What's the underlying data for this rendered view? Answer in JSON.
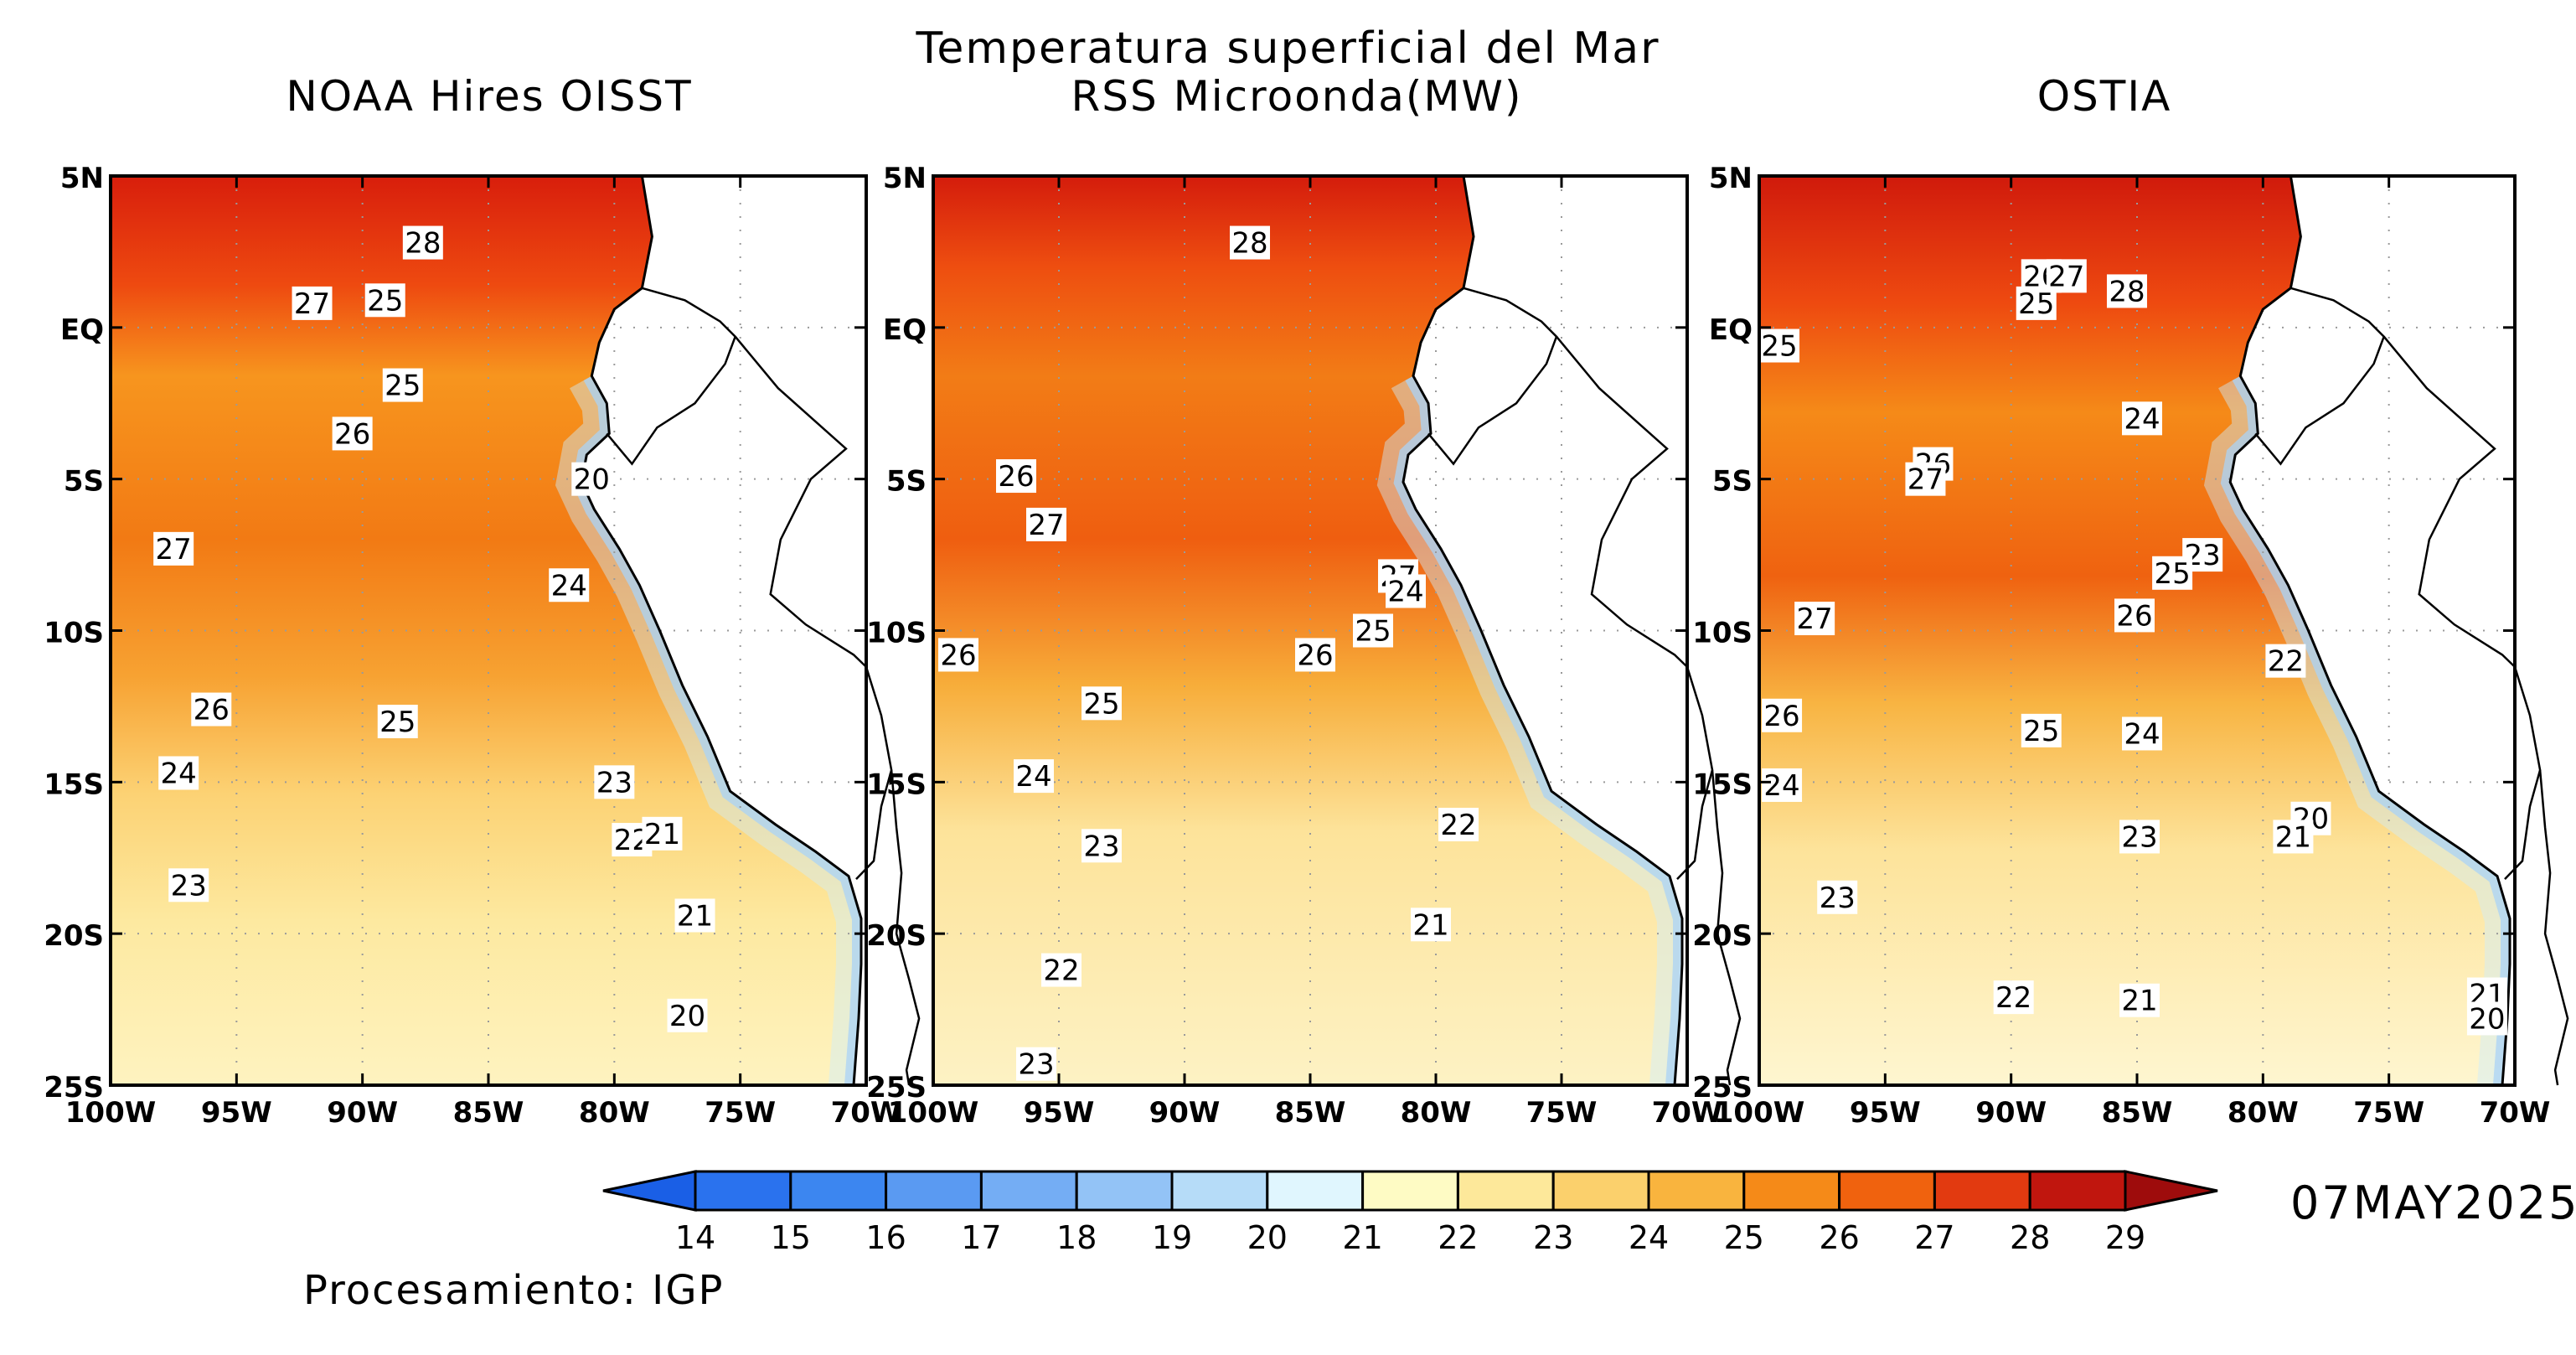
{
  "figure": {
    "title_line1": "Temperatura superficial del Mar",
    "date": "07MAY2025",
    "credit": "Procesamiento: IGP"
  },
  "panels": [
    {
      "title": "NOAA Hires OISST",
      "labels": [
        {
          "text": "28",
          "lon": -87.6,
          "lat": 2.8
        },
        {
          "text": "27",
          "lon": -92.0,
          "lat": 0.8
        },
        {
          "text": "25",
          "lon": -89.1,
          "lat": 0.9
        },
        {
          "text": "25",
          "lon": -88.4,
          "lat": -1.9
        },
        {
          "text": "26",
          "lon": -90.4,
          "lat": -3.5
        },
        {
          "text": "20",
          "lon": -80.9,
          "lat": -5.0
        },
        {
          "text": "27",
          "lon": -97.5,
          "lat": -7.3
        },
        {
          "text": "24",
          "lon": -81.8,
          "lat": -8.5
        },
        {
          "text": "26",
          "lon": -96.0,
          "lat": -12.6
        },
        {
          "text": "25",
          "lon": -88.6,
          "lat": -13.0
        },
        {
          "text": "24",
          "lon": -97.3,
          "lat": -14.7
        },
        {
          "text": "23",
          "lon": -80.0,
          "lat": -15.0
        },
        {
          "text": "22",
          "lon": -79.3,
          "lat": -16.9
        },
        {
          "text": "21",
          "lon": -78.1,
          "lat": -16.7
        },
        {
          "text": "23",
          "lon": -96.9,
          "lat": -18.4
        },
        {
          "text": "21",
          "lon": -76.8,
          "lat": -19.4
        },
        {
          "text": "20",
          "lon": -77.1,
          "lat": -22.7
        }
      ]
    },
    {
      "title": "RSS Microonda(MW)",
      "labels": [
        {
          "text": "28",
          "lon": -87.4,
          "lat": 2.8
        },
        {
          "text": "26",
          "lon": -96.7,
          "lat": -4.9
        },
        {
          "text": "27",
          "lon": -95.5,
          "lat": -6.5
        },
        {
          "text": "27",
          "lon": -81.5,
          "lat": -8.2
        },
        {
          "text": "24",
          "lon": -81.2,
          "lat": -8.7
        },
        {
          "text": "25",
          "lon": -82.5,
          "lat": -10.0
        },
        {
          "text": "26",
          "lon": -99.0,
          "lat": -10.8
        },
        {
          "text": "26",
          "lon": -84.8,
          "lat": -10.8
        },
        {
          "text": "25",
          "lon": -93.3,
          "lat": -12.4
        },
        {
          "text": "24",
          "lon": -96.0,
          "lat": -14.8
        },
        {
          "text": "23",
          "lon": -93.3,
          "lat": -17.1
        },
        {
          "text": "22",
          "lon": -79.1,
          "lat": -16.4
        },
        {
          "text": "21",
          "lon": -80.2,
          "lat": -19.7
        },
        {
          "text": "22",
          "lon": -94.9,
          "lat": -21.2
        },
        {
          "text": "23",
          "lon": -95.9,
          "lat": -24.3
        }
      ]
    },
    {
      "title": "OSTIA",
      "labels": [
        {
          "text": "26",
          "lon": -88.8,
          "lat": 1.7
        },
        {
          "text": "27",
          "lon": -87.8,
          "lat": 1.7
        },
        {
          "text": "28",
          "lon": -85.4,
          "lat": 1.2
        },
        {
          "text": "25",
          "lon": -89.0,
          "lat": 0.8
        },
        {
          "text": "25",
          "lon": -99.2,
          "lat": -0.6
        },
        {
          "text": "24",
          "lon": -84.8,
          "lat": -3.0
        },
        {
          "text": "26",
          "lon": -93.1,
          "lat": -4.5
        },
        {
          "text": "27",
          "lon": -93.4,
          "lat": -5.0
        },
        {
          "text": "23",
          "lon": -82.4,
          "lat": -7.5
        },
        {
          "text": "25",
          "lon": -83.6,
          "lat": -8.1
        },
        {
          "text": "26",
          "lon": -85.1,
          "lat": -9.5
        },
        {
          "text": "27",
          "lon": -97.8,
          "lat": -9.6
        },
        {
          "text": "22",
          "lon": -79.1,
          "lat": -11.0
        },
        {
          "text": "26",
          "lon": -99.1,
          "lat": -12.8
        },
        {
          "text": "25",
          "lon": -88.8,
          "lat": -13.3
        },
        {
          "text": "24",
          "lon": -84.8,
          "lat": -13.4
        },
        {
          "text": "24",
          "lon": -99.1,
          "lat": -15.1
        },
        {
          "text": "20",
          "lon": -78.1,
          "lat": -16.2
        },
        {
          "text": "21",
          "lon": -78.8,
          "lat": -16.8
        },
        {
          "text": "23",
          "lon": -84.9,
          "lat": -16.8
        },
        {
          "text": "23",
          "lon": -96.9,
          "lat": -18.8
        },
        {
          "text": "22",
          "lon": -89.9,
          "lat": -22.1
        },
        {
          "text": "21",
          "lon": -84.9,
          "lat": -22.2
        },
        {
          "text": "21",
          "lon": -71.1,
          "lat": -22.0
        },
        {
          "text": "20",
          "lon": -71.1,
          "lat": -22.8
        }
      ]
    }
  ],
  "map_axes": {
    "lon_range": [
      -100,
      -70
    ],
    "lat_range": [
      -25,
      5
    ],
    "lon_ticks": [
      -100,
      -95,
      -90,
      -85,
      -80,
      -75,
      -70
    ],
    "lon_tick_labels": [
      "100W",
      "95W",
      "90W",
      "85W",
      "80W",
      "75W",
      "70W"
    ],
    "lat_ticks": [
      5,
      0,
      -5,
      -10,
      -15,
      -20,
      -25
    ],
    "lat_tick_labels": [
      "5N",
      "EQ",
      "5S",
      "10S",
      "15S",
      "20S",
      "25S"
    ],
    "graticule": "dotted"
  },
  "colorbar": {
    "labels": [
      "14",
      "15",
      "16",
      "17",
      "18",
      "19",
      "20",
      "21",
      "22",
      "23",
      "24",
      "25",
      "26",
      "27",
      "28",
      "29"
    ],
    "colors": [
      "#1a5fe6",
      "#2a72ee",
      "#3c86f0",
      "#5a9af2",
      "#74adf4",
      "#93c3f6",
      "#b6dcf8",
      "#e0f6fe",
      "#fefbc4",
      "#fde89a",
      "#fbd06c",
      "#f9b43e",
      "#f58a18",
      "#f0620e",
      "#e23a10",
      "#c0160e",
      "#9e0c0c"
    ]
  }
}
